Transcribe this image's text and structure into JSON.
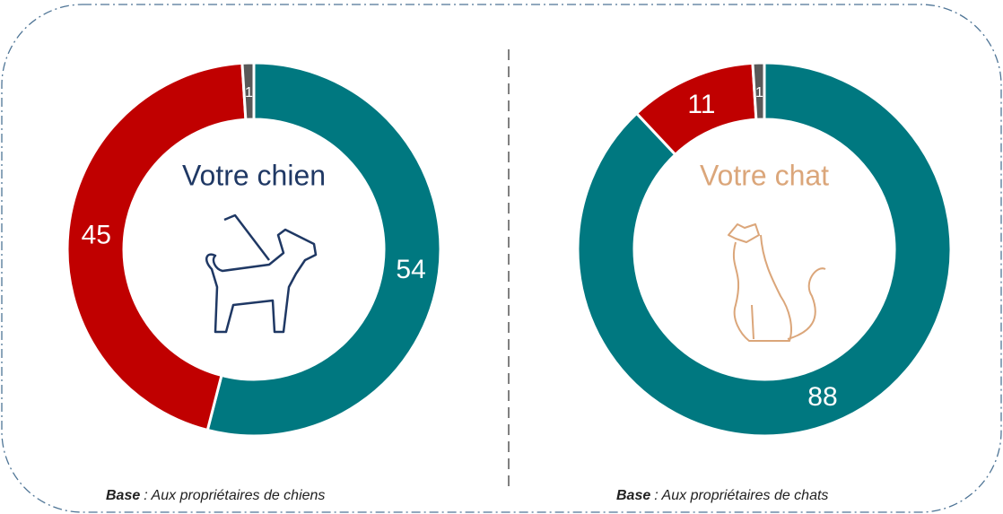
{
  "chart_data": [
    {
      "type": "pie",
      "title": "Votre chien",
      "title_color": "#1f3864",
      "values": [
        54,
        45,
        1
      ],
      "colors": [
        "#007880",
        "#c00000",
        "#595959"
      ],
      "footnote": {
        "label": "Base",
        "text": ": Aux propriétaires de chiens"
      }
    },
    {
      "type": "pie",
      "title": "Votre chat",
      "title_color": "#dba67a",
      "values": [
        88,
        11,
        1
      ],
      "colors": [
        "#007880",
        "#c00000",
        "#595959"
      ],
      "footnote": {
        "label": "Base",
        "text": ": Aux propriétaires de chats"
      }
    }
  ]
}
